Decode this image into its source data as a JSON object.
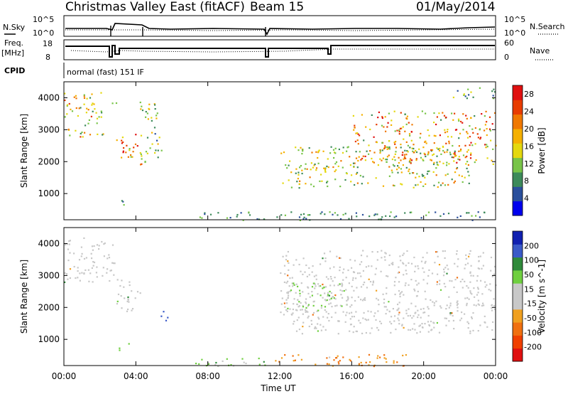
{
  "header": {
    "title": "Christmas Valley East (fitACF)",
    "beam": "Beam 15",
    "date": "01/May/2014"
  },
  "top_panels": {
    "nsky_label": "N.Sky",
    "nsearch_label": "N.Search",
    "noise_ticks_left": [
      "10^5",
      "10^0"
    ],
    "noise_ticks_right": [
      "10^5",
      "10^0"
    ],
    "freq_label": "Freq.",
    "freq_unit": "[MHz]",
    "freq_ticks": [
      "18",
      "8"
    ],
    "nave_label": "Nave",
    "nave_ticks": [
      "60",
      "0"
    ],
    "cpid_label": "CPID",
    "cpid_text": "normal (fast) 151 IF"
  },
  "colors": {
    "power_scale": [
      "#0000ee",
      "#2a4f9c",
      "#3c8a5a",
      "#78c448",
      "#e4d80e",
      "#f5b000",
      "#f07800",
      "#e83c00",
      "#e01010"
    ],
    "velocity_scale": [
      "#1020b0",
      "#3a5ac8",
      "#2f8a3a",
      "#6fcf3f",
      "#c8c8c8",
      "#c8c8c8",
      "#f0a020",
      "#f07010",
      "#f04000",
      "#e01010"
    ]
  },
  "chart_data": [
    {
      "type": "heatmap",
      "parameter": "Power",
      "ylabel": "Slant Range [km]",
      "xlabel": "Time UT",
      "x_ticks": [
        "00:00",
        "04:00",
        "08:00",
        "12:00",
        "16:00",
        "20:00",
        "00:00"
      ],
      "x_range_hours": [
        0,
        24
      ],
      "y_ticks": [
        1000,
        2000,
        3000,
        4000
      ],
      "y_range_km": [
        180,
        4500
      ],
      "colorbar": {
        "label": "Power [dB]",
        "ticks": [
          4,
          8,
          12,
          16,
          20,
          24,
          28
        ],
        "range": [
          0,
          30
        ]
      },
      "scatter_regions": [
        {
          "t0": 0.0,
          "t1": 2.2,
          "r0": 2800,
          "r1": 4200,
          "peak": 22
        },
        {
          "t0": 2.6,
          "t1": 2.9,
          "r0": 3600,
          "r1": 4000,
          "peak": 18
        },
        {
          "t0": 2.9,
          "t1": 4.3,
          "r0": 1900,
          "r1": 2900,
          "peak": 28
        },
        {
          "t0": 3.0,
          "t1": 3.7,
          "r0": 650,
          "r1": 900,
          "peak": 12
        },
        {
          "t0": 4.2,
          "t1": 5.4,
          "r0": 2000,
          "r1": 3900,
          "peak": 18
        },
        {
          "t0": 12.0,
          "t1": 22.5,
          "r0": 1200,
          "r1": 2500,
          "peak": 20
        },
        {
          "t0": 16.0,
          "t1": 24.0,
          "r0": 1900,
          "r1": 3600,
          "peak": 26
        },
        {
          "t0": 21.5,
          "t1": 24.0,
          "r0": 4000,
          "r1": 4350,
          "peak": 14
        },
        {
          "t0": 7.0,
          "t1": 24.0,
          "r0": 180,
          "r1": 450,
          "peak": 10
        }
      ]
    },
    {
      "type": "heatmap",
      "parameter": "Velocity",
      "ylabel": "Slant Range [km]",
      "xlabel": "Time UT",
      "x_ticks": [
        "00:00",
        "04:00",
        "08:00",
        "12:00",
        "16:00",
        "20:00",
        "00:00"
      ],
      "x_range_hours": [
        0,
        24
      ],
      "y_ticks": [
        1000,
        2000,
        3000,
        4000
      ],
      "y_range_km": [
        180,
        4500
      ],
      "colorbar": {
        "label": "Velocity [m s^-1]",
        "ticks": [
          200,
          100,
          50,
          15,
          -15,
          -50,
          -100,
          -200
        ],
        "range": [
          -250,
          250
        ]
      },
      "scatter_regions": [
        {
          "t0": 0.0,
          "t1": 2.8,
          "r0": 2800,
          "r1": 4200,
          "v": 0
        },
        {
          "t0": 2.9,
          "t1": 4.3,
          "r0": 1900,
          "r1": 2900,
          "v": 0
        },
        {
          "t0": 5.3,
          "t1": 5.8,
          "r0": 1600,
          "r1": 2000,
          "v": 180
        },
        {
          "t0": 3.0,
          "t1": 3.7,
          "r0": 650,
          "r1": 900,
          "v": 40
        },
        {
          "t0": 12.0,
          "t1": 24.0,
          "r0": 1200,
          "r1": 3800,
          "v": 0
        },
        {
          "t0": 12.0,
          "t1": 16.0,
          "r0": 1800,
          "r1": 2800,
          "v": 30
        },
        {
          "t0": 7.0,
          "t1": 11.5,
          "r0": 180,
          "r1": 450,
          "v": 35
        },
        {
          "t0": 11.5,
          "t1": 19.0,
          "r0": 180,
          "r1": 550,
          "v": -70
        }
      ]
    }
  ]
}
